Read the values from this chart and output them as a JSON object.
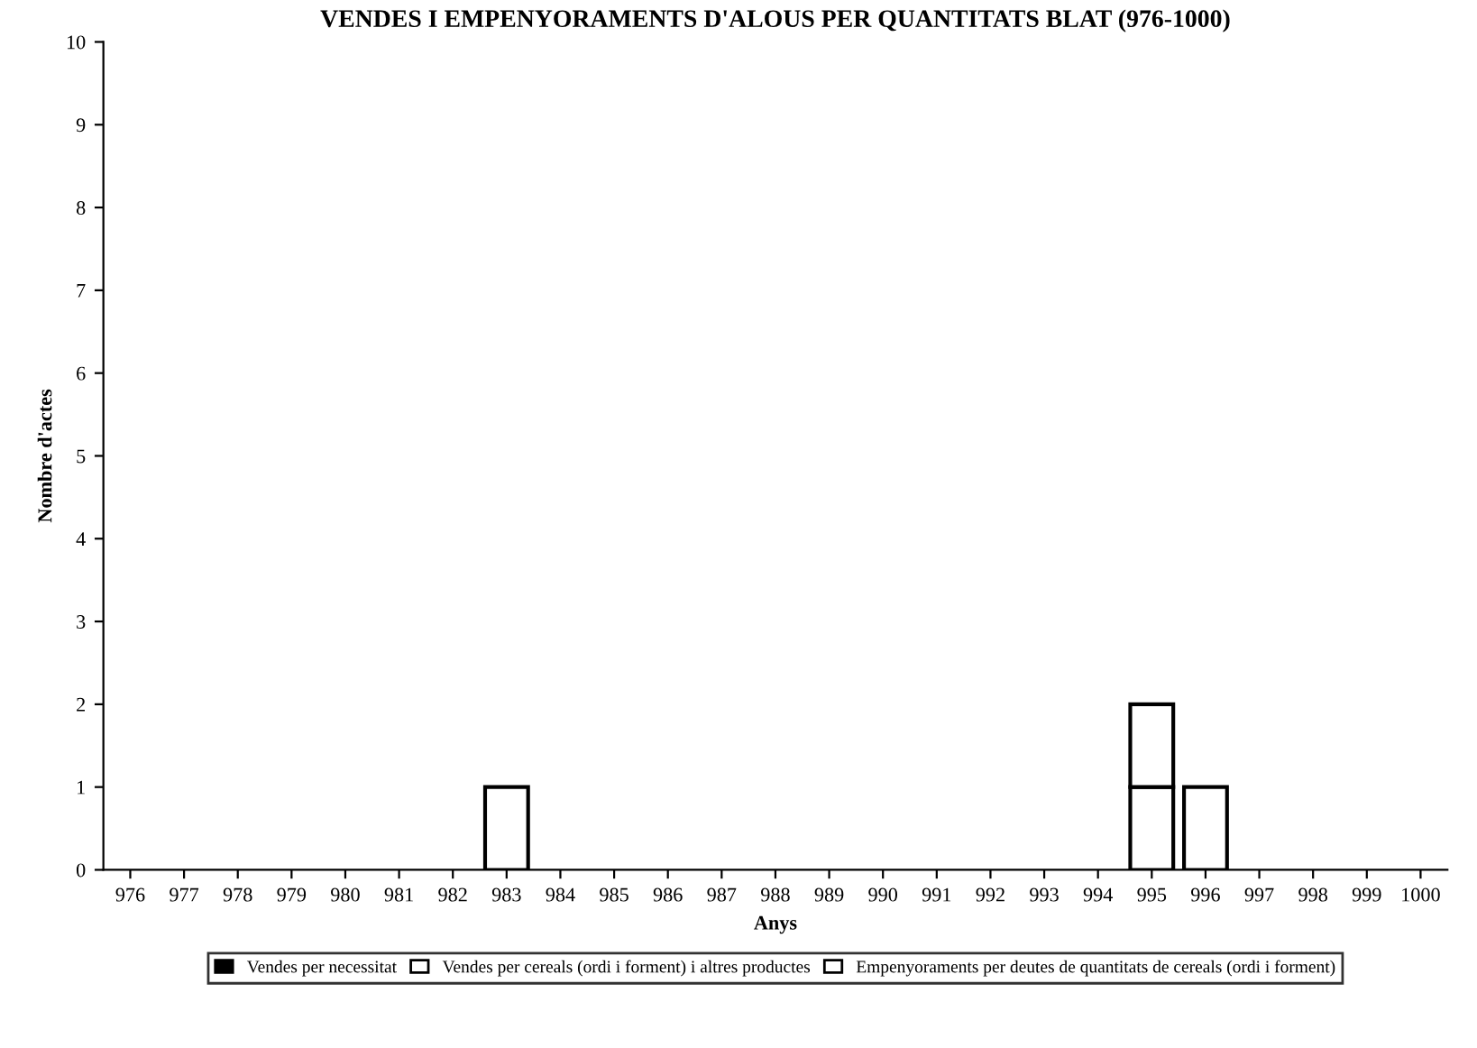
{
  "chart_data": {
    "type": "bar",
    "stacked": true,
    "title": "VENDES I EMPENYORAMENTS D'ALOUS PER QUANTITATS BLAT (976-1000)",
    "xlabel": "Anys",
    "ylabel": "Nombre d'actes",
    "categories": [
      "976",
      "977",
      "978",
      "979",
      "980",
      "981",
      "982",
      "983",
      "984",
      "985",
      "986",
      "987",
      "988",
      "989",
      "990",
      "991",
      "992",
      "993",
      "994",
      "995",
      "996",
      "997",
      "998",
      "999",
      "1000"
    ],
    "series": [
      {
        "name": "Vendes per necessitat",
        "color": "#000000",
        "values": [
          0,
          0,
          0,
          0,
          0,
          0,
          0,
          0,
          0,
          0,
          0,
          0,
          0,
          0,
          0,
          0,
          0,
          0,
          0,
          0,
          0,
          0,
          0,
          0,
          0
        ]
      },
      {
        "name": "Vendes per cereals (ordi i forment) i altres productes",
        "color": "#ffffff",
        "values": [
          0,
          0,
          0,
          0,
          0,
          0,
          0,
          0,
          0,
          0,
          0,
          0,
          0,
          0,
          0,
          0,
          0,
          0,
          0,
          1,
          1,
          0,
          0,
          0,
          0
        ]
      },
      {
        "name": "Empenyoraments per deutes de quantitats de cereals (ordi i forment)",
        "color": "#ffffff",
        "values": [
          0,
          0,
          0,
          0,
          0,
          0,
          0,
          1,
          0,
          0,
          0,
          0,
          0,
          0,
          0,
          0,
          0,
          0,
          0,
          1,
          0,
          0,
          0,
          0,
          0
        ]
      }
    ],
    "ylim": [
      0,
      10
    ],
    "yticks": [
      0,
      1,
      2,
      3,
      4,
      5,
      6,
      7,
      8,
      9,
      10
    ],
    "grid": false,
    "legend": "bottom"
  }
}
